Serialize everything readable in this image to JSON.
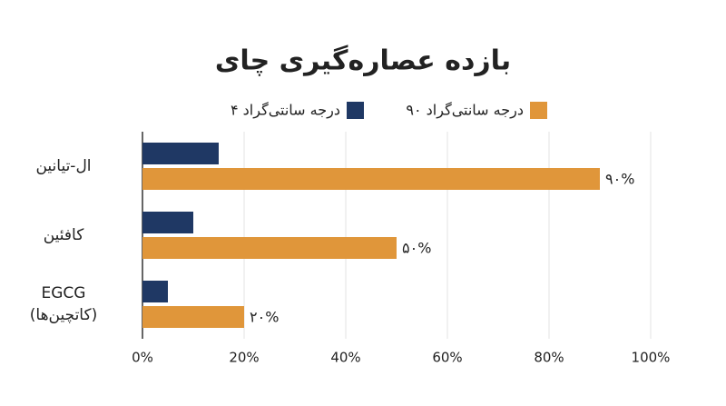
{
  "chart_data": {
    "type": "bar",
    "orientation": "horizontal",
    "title": "بازده عصاره‌گیری چای",
    "categories": [
      "ال-تیانین",
      "کافئین",
      "EGCG\n(کاتچین‌ها)"
    ],
    "series": [
      {
        "name": "۴ درجه سانتی‌گراد",
        "color": "#1f3864",
        "values": [
          15,
          10,
          5
        ]
      },
      {
        "name": "۹۰ درجه سانتی‌گراد",
        "color": "#e0963a",
        "values": [
          90,
          50,
          20
        ],
        "value_labels": [
          "۹۰%",
          "۵۰%",
          "۲۰%"
        ]
      }
    ],
    "xlim": [
      0,
      100
    ],
    "xticks": [
      {
        "value": 0,
        "label": "0%"
      },
      {
        "value": 20,
        "label": "20%"
      },
      {
        "value": 40,
        "label": "40%"
      },
      {
        "value": 60,
        "label": "60%"
      },
      {
        "value": 80,
        "label": "80%"
      },
      {
        "value": 100,
        "label": "100%"
      }
    ],
    "grid": true
  }
}
